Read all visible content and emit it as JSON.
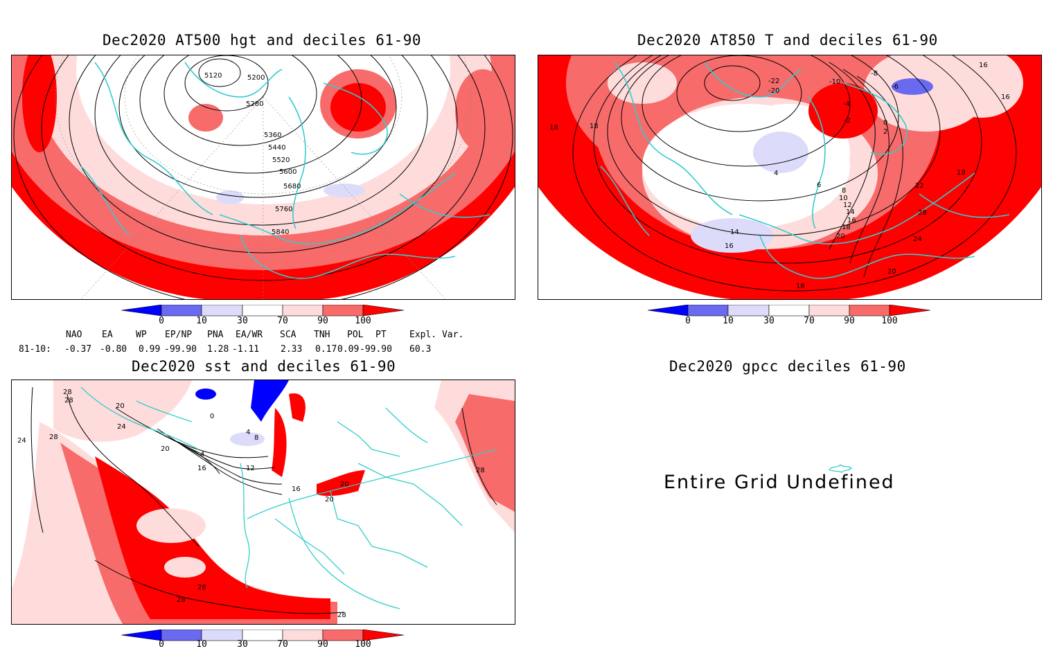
{
  "panels": {
    "hgt500": {
      "title": "Dec2020 AT500 hgt and deciles 61-90",
      "contour_labels": [
        "5120",
        "5200",
        "5280",
        "5360",
        "5440",
        "5520",
        "5600",
        "5680",
        "5760",
        "5840"
      ]
    },
    "t850": {
      "title": "Dec2020 AT850 T and deciles 61-90",
      "contour_labels": [
        "-22",
        "-20",
        "-10",
        "-8",
        "-6",
        "-4",
        "-2",
        "0",
        "2",
        "4",
        "6",
        "8",
        "10",
        "12",
        "14",
        "16",
        "18",
        "20",
        "22",
        "24",
        "28",
        "14",
        "16",
        "18",
        "18",
        "16",
        "16",
        "18",
        "20",
        "18"
      ]
    },
    "sst": {
      "title": "Dec2020 sst and deciles 61-90",
      "contour_labels": [
        "28",
        "28",
        "20",
        "24",
        "28",
        "24",
        "20",
        "16",
        "4",
        "8",
        "12",
        "0",
        "4",
        "16",
        "20",
        "20",
        "28",
        "28",
        "28",
        "28"
      ]
    },
    "gpcc": {
      "title": "Dec2020 gpcc deciles 61-90",
      "message": "Entire Grid Undefined"
    }
  },
  "colorbar": {
    "ticks": [
      "0",
      "10",
      "30",
      "70",
      "90",
      "100"
    ],
    "colors": [
      "#0000ff",
      "#6a6af0",
      "#dcdcfa",
      "#ffffff",
      "#ffdcdc",
      "#f76b6b",
      "#ff0000"
    ]
  },
  "indices": {
    "headers": [
      "NAO",
      "EA",
      "WP",
      "EP/NP",
      "PNA",
      "EA/WR",
      "SCA",
      "TNH",
      "POL",
      "PT",
      "Expl. Var."
    ],
    "row_label": "81-10:",
    "values": [
      "-0.37",
      "-0.80",
      "0.99",
      "-99.90",
      "1.28",
      "-1.11",
      "2.33",
      "0.17",
      "0.09",
      "-99.90",
      "60.3"
    ]
  },
  "colors": {
    "coast": "#33cccc",
    "contour": "#000000",
    "red": "#ff0000",
    "light_red": "#f76b6b",
    "pink": "#ffdcdc",
    "light_blue": "#dcdcfa",
    "blue": "#0000ff"
  }
}
